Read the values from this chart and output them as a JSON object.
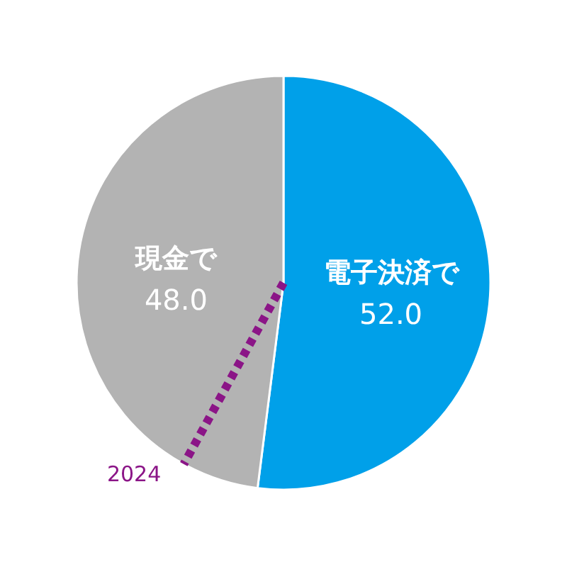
{
  "chart_data": {
    "type": "pie",
    "categories": [
      "電子決済で",
      "現金で"
    ],
    "values": [
      52.0,
      48.0
    ],
    "colors": [
      "#00a0e9",
      "#b3b3b3"
    ],
    "value_labels": [
      "52.0",
      "48.0"
    ],
    "needle": "現金で",
    "annotations": [
      "2024"
    ]
  }
}
